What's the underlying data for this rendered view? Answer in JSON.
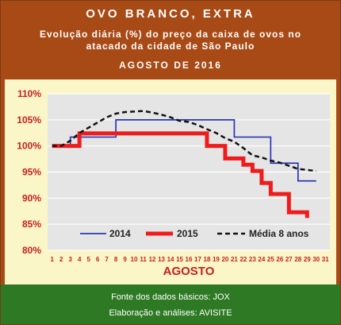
{
  "header": {
    "title": "OVO BRANCO, EXTRA",
    "subtitle": "Evolução diária (%) do preço da caixa de ovos no atacado da cidade de São Paulo",
    "period": "AGOSTO DE 2016"
  },
  "footer": {
    "source": "Fonte dos dados básicos: JOX",
    "credits": "Elaboração e análises: AVISITE"
  },
  "chart_data": {
    "type": "line",
    "xlabel": "AGOSTO",
    "ylabel": "",
    "x": [
      1,
      2,
      3,
      4,
      5,
      6,
      7,
      8,
      9,
      10,
      11,
      12,
      13,
      14,
      15,
      16,
      17,
      18,
      19,
      20,
      21,
      22,
      23,
      24,
      25,
      26,
      27,
      28,
      29,
      30,
      31
    ],
    "ylim": [
      80,
      110
    ],
    "yticks": [
      "80%",
      "85%",
      "90%",
      "95%",
      "100%",
      "105%",
      "110%"
    ],
    "grid": true,
    "legend_position": "bottom",
    "series": [
      {
        "name": "2014",
        "color": "#1f2bb0",
        "style": "solid",
        "x": [
          1,
          2,
          3,
          4,
          5,
          6,
          7,
          8,
          9,
          10,
          11,
          12,
          13,
          14,
          15,
          16,
          17,
          18,
          19,
          20,
          21,
          22,
          23,
          24,
          25,
          26,
          27,
          28,
          29,
          30
        ],
        "values": [
          100,
          100,
          101.7,
          101.7,
          101.7,
          101.7,
          101.7,
          105,
          105,
          105,
          105,
          105,
          105,
          105,
          105,
          105,
          105,
          105,
          105,
          105,
          101.7,
          101.7,
          101.7,
          101.7,
          96.7,
          96.7,
          96.7,
          93.3,
          93.3,
          93.3
        ]
      },
      {
        "name": "2015",
        "color": "#ee1c1c",
        "style": "solid",
        "x": [
          1,
          2,
          3,
          4,
          5,
          6,
          7,
          8,
          9,
          10,
          11,
          12,
          13,
          14,
          15,
          16,
          17,
          18,
          19,
          20,
          21,
          22,
          23,
          24,
          25,
          26,
          27,
          28,
          29
        ],
        "values": [
          100,
          100,
          100,
          102.4,
          102.4,
          102.4,
          102.4,
          102.4,
          102.4,
          102.4,
          102.4,
          102.4,
          102.4,
          102.4,
          102.4,
          102.4,
          102.4,
          100,
          100,
          97.6,
          97.6,
          96.4,
          95.2,
          92.9,
          90.8,
          90.8,
          87.3,
          87.3,
          86.2
        ]
      },
      {
        "name": "Média 8 anos",
        "color": "#111111",
        "style": "dashed",
        "x": [
          1,
          2,
          3,
          4,
          5,
          6,
          7,
          8,
          9,
          10,
          11,
          12,
          13,
          14,
          15,
          16,
          17,
          18,
          19,
          20,
          21,
          22,
          23,
          24,
          25,
          26,
          27,
          28,
          29,
          30
        ],
        "values": [
          100,
          100,
          101,
          102.5,
          103.5,
          104.5,
          105.5,
          106.2,
          106.5,
          106.6,
          106.7,
          106.4,
          106,
          105.5,
          104.8,
          104.6,
          104,
          103.2,
          102.5,
          101.5,
          100.8,
          99.6,
          98.2,
          97.8,
          97.2,
          96.8,
          96.2,
          95.6,
          95.4,
          95.2
        ]
      }
    ]
  }
}
